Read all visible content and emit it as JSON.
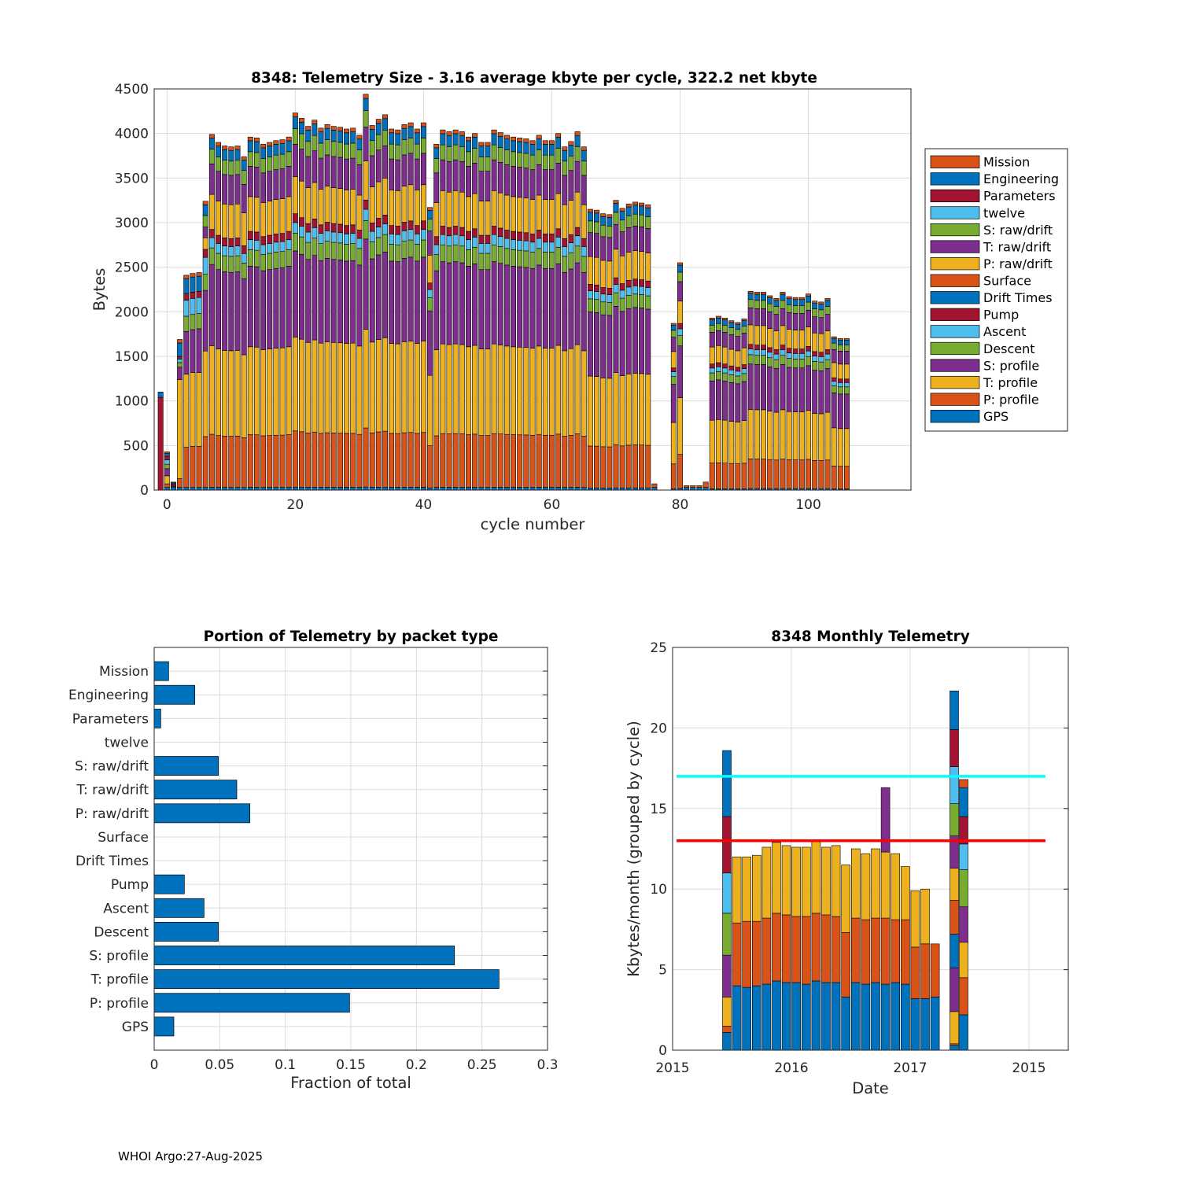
{
  "footer": "WHOI Argo:27-Aug-2025",
  "colors": {
    "blue": "#0072BD",
    "orange": "#D95319",
    "yellow": "#EDB120",
    "purple": "#7E2F8E",
    "green": "#77AC30",
    "cyan": "#4DBEEE",
    "red": "#A2142F",
    "line_cyan": "#00FFFF",
    "line_red": "#FF0000"
  },
  "chart_data": [
    {
      "id": "telemetry_size",
      "type": "bar",
      "stacked": true,
      "title": "8348: Telemetry Size - 3.16 average kbyte per cycle,  322.2 net kbyte",
      "xlabel": "cycle number",
      "ylabel": "Bytes",
      "xlim": [
        -2,
        116
      ],
      "ylim": [
        0,
        4500
      ],
      "xticks": [
        0,
        20,
        40,
        60,
        80,
        100
      ],
      "yticks": [
        0,
        500,
        1000,
        1500,
        2000,
        2500,
        3000,
        3500,
        4000,
        4500
      ],
      "grid": true,
      "legend_position": "right",
      "legend": [
        "Mission",
        "Engineering",
        "Parameters",
        "twelve",
        "S: raw/drift",
        "T: raw/drift",
        "P: raw/drift",
        "Surface",
        "Drift Times",
        "Pump",
        "Ascent",
        "Descent",
        "S: profile",
        "T: profile",
        "P: profile",
        "GPS"
      ],
      "stack_order": [
        "GPS",
        "P: profile",
        "T: profile",
        "S: profile",
        "Descent",
        "Ascent",
        "Pump",
        "Drift Times",
        "Surface",
        "P: raw/drift",
        "T: raw/drift",
        "S: raw/drift",
        "twelve",
        "Parameters",
        "Engineering",
        "Mission"
      ],
      "series_colors": {
        "GPS": "#0072BD",
        "P: profile": "#D95319",
        "T: profile": "#EDB120",
        "S: profile": "#7E2F8E",
        "Descent": "#77AC30",
        "Ascent": "#4DBEEE",
        "Pump": "#A2142F",
        "Drift Times": "#0072BD",
        "Surface": "#D95319",
        "P: raw/drift": "#EDB120",
        "T: raw/drift": "#7E2F8E",
        "S: raw/drift": "#77AC30",
        "twelve": "#4DBEEE",
        "Parameters": "#A2142F",
        "Engineering": "#0072BD",
        "Mission": "#D95319"
      },
      "cycles": [
        {
          "c": -1,
          "GPS": 0,
          "Parameters": 1040,
          "Engineering": 60
        },
        {
          "c": 0,
          "GPS": 30,
          "P: profile": 40,
          "T: profile": 90,
          "S: profile": 80,
          "Descent": 50,
          "Ascent": 50,
          "Pump": 40,
          "Engineering": 30,
          "Mission": 20
        },
        {
          "c": 1,
          "GPS": 30,
          "Descent": 10,
          "Ascent": 10,
          "Pump": 20,
          "Surface": 10,
          "Engineering": 10
        },
        {
          "c": 2,
          "GPS": 30,
          "P: profile": 100,
          "T: profile": 1110,
          "S: profile": 140,
          "Descent": 50,
          "Ascent": 40,
          "Pump": 30,
          "Engineering": 150,
          "Mission": 40
        },
        {
          "c": 3,
          "GPS": 30,
          "P: profile": 450,
          "T: profile": 820,
          "S: profile": 480,
          "Descent": 170,
          "Ascent": 180,
          "Pump": 70,
          "Engineering": 170,
          "Mission": 40
        },
        {
          "c": 4,
          "GPS": 30,
          "P: profile": 460,
          "T: profile": 830,
          "S: profile": 480,
          "Descent": 170,
          "Ascent": 180,
          "Pump": 70,
          "Engineering": 170,
          "Mission": 40
        },
        {
          "c": 5,
          "GPS": 30,
          "P: profile": 460,
          "T: profile": 830,
          "S: profile": 490,
          "Descent": 170,
          "Ascent": 180,
          "Pump": 70,
          "Engineering": 170,
          "Mission": 40
        },
        {
          "c": 6,
          "GPS": 30,
          "P: profile": 570,
          "T: profile": 960,
          "S: profile": 680,
          "Descent": 180,
          "Ascent": 190,
          "Pump": 90,
          "P: raw/drift": 130,
          "T: raw/drift": 120,
          "S: raw/drift": 130,
          "Engineering": 120,
          "Mission": 40
        }
      ],
      "note": "Cycles 7-105 follow similar stacking; total heights listed below",
      "totals": {
        "7": 3990,
        "8": 3900,
        "9": 3860,
        "10": 3850,
        "11": 3860,
        "12": 3740,
        "13": 3960,
        "14": 3950,
        "15": 3880,
        "16": 3900,
        "17": 3920,
        "18": 3930,
        "19": 3960,
        "20": 4230,
        "21": 4170,
        "22": 4080,
        "23": 4150,
        "24": 4060,
        "25": 4100,
        "26": 4080,
        "27": 4070,
        "28": 4050,
        "29": 4060,
        "30": 3980,
        "31": 4440,
        "32": 4090,
        "33": 4160,
        "34": 4210,
        "35": 4050,
        "36": 4040,
        "37": 4100,
        "38": 4120,
        "39": 4050,
        "40": 4120,
        "41": 3170,
        "42": 3880,
        "43": 4040,
        "44": 4020,
        "45": 4040,
        "46": 4020,
        "47": 3960,
        "48": 4000,
        "49": 3900,
        "50": 3900,
        "51": 4040,
        "52": 4010,
        "53": 3980,
        "54": 3960,
        "55": 3950,
        "56": 3940,
        "57": 3920,
        "58": 3980,
        "59": 3920,
        "60": 3920,
        "61": 4000,
        "62": 3850,
        "63": 3910,
        "64": 4020,
        "65": 3850,
        "66": 3150,
        "67": 3140,
        "68": 3100,
        "69": 3090,
        "70": 3250,
        "71": 3160,
        "72": 3210,
        "73": 3230,
        "74": 3220,
        "75": 3200,
        "76": 70,
        "79": 1870,
        "80": 2550,
        "81": 50,
        "82": 50,
        "83": 50,
        "84": 90,
        "85": 1930,
        "86": 1950,
        "87": 1930,
        "88": 1900,
        "89": 1880,
        "90": 1920,
        "91": 2230,
        "92": 2220,
        "93": 2220,
        "94": 2180,
        "95": 2150,
        "96": 2220,
        "97": 2170,
        "98": 2160,
        "99": 2160,
        "100": 2200,
        "101": 2120,
        "102": 2110,
        "103": 2150,
        "104": 1720,
        "105": 1700,
        "106": 1700
      }
    },
    {
      "id": "portion_by_packet",
      "type": "bar",
      "orientation": "horizontal",
      "title": "Portion of Telemetry by packet type",
      "xlabel": "Fraction of total",
      "xlim": [
        0,
        0.3
      ],
      "xticks": [
        0,
        0.05,
        0.1,
        0.15,
        0.2,
        0.25,
        0.3
      ],
      "xtick_labels": [
        "0",
        "0.05",
        "0.1",
        "0.15",
        "0.2",
        "0.25",
        "0.3"
      ],
      "categories": [
        "Mission",
        "Engineering",
        "Parameters",
        "twelve",
        "S: raw/drift",
        "T: raw/drift",
        "P: raw/drift",
        "Surface",
        "Drift Times",
        "Pump",
        "Ascent",
        "Descent",
        "S: profile",
        "T: profile",
        "P: profile",
        "GPS"
      ],
      "values": [
        0.011,
        0.031,
        0.005,
        0.0,
        0.049,
        0.063,
        0.073,
        0.0,
        0.0,
        0.023,
        0.038,
        0.049,
        0.229,
        0.263,
        0.149,
        0.015
      ],
      "grid": true
    },
    {
      "id": "monthly_telemetry",
      "type": "bar",
      "stacked": true,
      "title": "8348 Monthly Telemetry",
      "xlabel": "Date",
      "ylabel": "Kbytes/month (grouped by cycle)",
      "ylim": [
        0,
        25
      ],
      "yticks": [
        0,
        5,
        10,
        15,
        20,
        25
      ],
      "xticks": [
        "2015",
        "2016",
        "2017",
        "2015"
      ],
      "grid": true,
      "hlines": [
        {
          "y": 17,
          "color": "#00FFFF"
        },
        {
          "y": 13,
          "color": "#FF0000"
        }
      ],
      "bar_segments": [
        [
          [
            1.1,
            "#0072BD"
          ],
          [
            0.4,
            "#D95319"
          ],
          [
            1.8,
            "#EDB120"
          ],
          [
            2.6,
            "#7E2F8E"
          ],
          [
            2.6,
            "#77AC30"
          ],
          [
            2.5,
            "#4DBEEE"
          ],
          [
            3.5,
            "#A2142F"
          ],
          [
            4.1,
            "#0072BD"
          ]
        ],
        [
          [
            4.0,
            "#0072BD"
          ],
          [
            3.9,
            "#D95319"
          ],
          [
            4.1,
            "#EDB120"
          ]
        ],
        [
          [
            3.9,
            "#0072BD"
          ],
          [
            4.1,
            "#D95319"
          ],
          [
            4.0,
            "#EDB120"
          ]
        ],
        [
          [
            4.0,
            "#0072BD"
          ],
          [
            4.0,
            "#D95319"
          ],
          [
            4.1,
            "#EDB120"
          ]
        ],
        [
          [
            4.1,
            "#0072BD"
          ],
          [
            4.1,
            "#D95319"
          ],
          [
            4.4,
            "#EDB120"
          ]
        ],
        [
          [
            4.3,
            "#0072BD"
          ],
          [
            4.2,
            "#D95319"
          ],
          [
            4.4,
            "#EDB120"
          ]
        ],
        [
          [
            4.2,
            "#0072BD"
          ],
          [
            4.2,
            "#D95319"
          ],
          [
            4.3,
            "#EDB120"
          ]
        ],
        [
          [
            4.2,
            "#0072BD"
          ],
          [
            4.1,
            "#D95319"
          ],
          [
            4.3,
            "#EDB120"
          ]
        ],
        [
          [
            4.1,
            "#0072BD"
          ],
          [
            4.2,
            "#D95319"
          ],
          [
            4.3,
            "#EDB120"
          ]
        ],
        [
          [
            4.3,
            "#0072BD"
          ],
          [
            4.2,
            "#D95319"
          ],
          [
            4.5,
            "#EDB120"
          ]
        ],
        [
          [
            4.2,
            "#0072BD"
          ],
          [
            4.2,
            "#D95319"
          ],
          [
            4.2,
            "#EDB120"
          ]
        ],
        [
          [
            4.2,
            "#0072BD"
          ],
          [
            4.1,
            "#D95319"
          ],
          [
            4.4,
            "#EDB120"
          ]
        ],
        [
          [
            3.3,
            "#0072BD"
          ],
          [
            4.0,
            "#D95319"
          ],
          [
            4.2,
            "#EDB120"
          ]
        ],
        [
          [
            4.2,
            "#0072BD"
          ],
          [
            4.0,
            "#D95319"
          ],
          [
            4.3,
            "#EDB120"
          ]
        ],
        [
          [
            4.1,
            "#0072BD"
          ],
          [
            4.0,
            "#D95319"
          ],
          [
            4.1,
            "#EDB120"
          ]
        ],
        [
          [
            4.2,
            "#0072BD"
          ],
          [
            4.0,
            "#D95319"
          ],
          [
            4.3,
            "#EDB120"
          ]
        ],
        [
          [
            4.1,
            "#0072BD"
          ],
          [
            4.1,
            "#D95319"
          ],
          [
            4.1,
            "#EDB120"
          ],
          [
            4.0,
            "#7E2F8E"
          ]
        ],
        [
          [
            4.2,
            "#0072BD"
          ],
          [
            3.9,
            "#D95319"
          ],
          [
            4.1,
            "#EDB120"
          ]
        ],
        [
          [
            4.1,
            "#0072BD"
          ],
          [
            4.0,
            "#D95319"
          ],
          [
            3.3,
            "#EDB120"
          ]
        ],
        [
          [
            3.2,
            "#0072BD"
          ],
          [
            3.2,
            "#D95319"
          ],
          [
            3.5,
            "#EDB120"
          ]
        ],
        [
          [
            3.2,
            "#0072BD"
          ],
          [
            3.4,
            "#D95319"
          ],
          [
            3.4,
            "#EDB120"
          ]
        ],
        [
          [
            3.3,
            "#0072BD"
          ],
          [
            3.3,
            "#D95319"
          ]
        ],
        [
          [
            0.3,
            "#0072BD"
          ],
          [
            0.1,
            "#D95319"
          ],
          [
            2.0,
            "#EDB120"
          ],
          [
            2.7,
            "#7E2F8E"
          ],
          [
            2.1,
            "#0072BD"
          ],
          [
            2.1,
            "#D95319"
          ],
          [
            2.0,
            "#EDB120"
          ],
          [
            2.0,
            "#7E2F8E"
          ],
          [
            2.0,
            "#77AC30"
          ],
          [
            2.3,
            "#4DBEEE"
          ],
          [
            2.3,
            "#A2142F"
          ],
          [
            2.4,
            "#0072BD"
          ]
        ],
        [
          [
            2.2,
            "#0072BD"
          ],
          [
            2.3,
            "#D95319"
          ],
          [
            2.2,
            "#EDB120"
          ],
          [
            2.2,
            "#7E2F8E"
          ],
          [
            2.3,
            "#77AC30"
          ],
          [
            1.6,
            "#4DBEEE"
          ],
          [
            1.7,
            "#A2142F"
          ],
          [
            1.8,
            "#0072BD"
          ],
          [
            0.5,
            "#D95319"
          ]
        ]
      ]
    }
  ]
}
